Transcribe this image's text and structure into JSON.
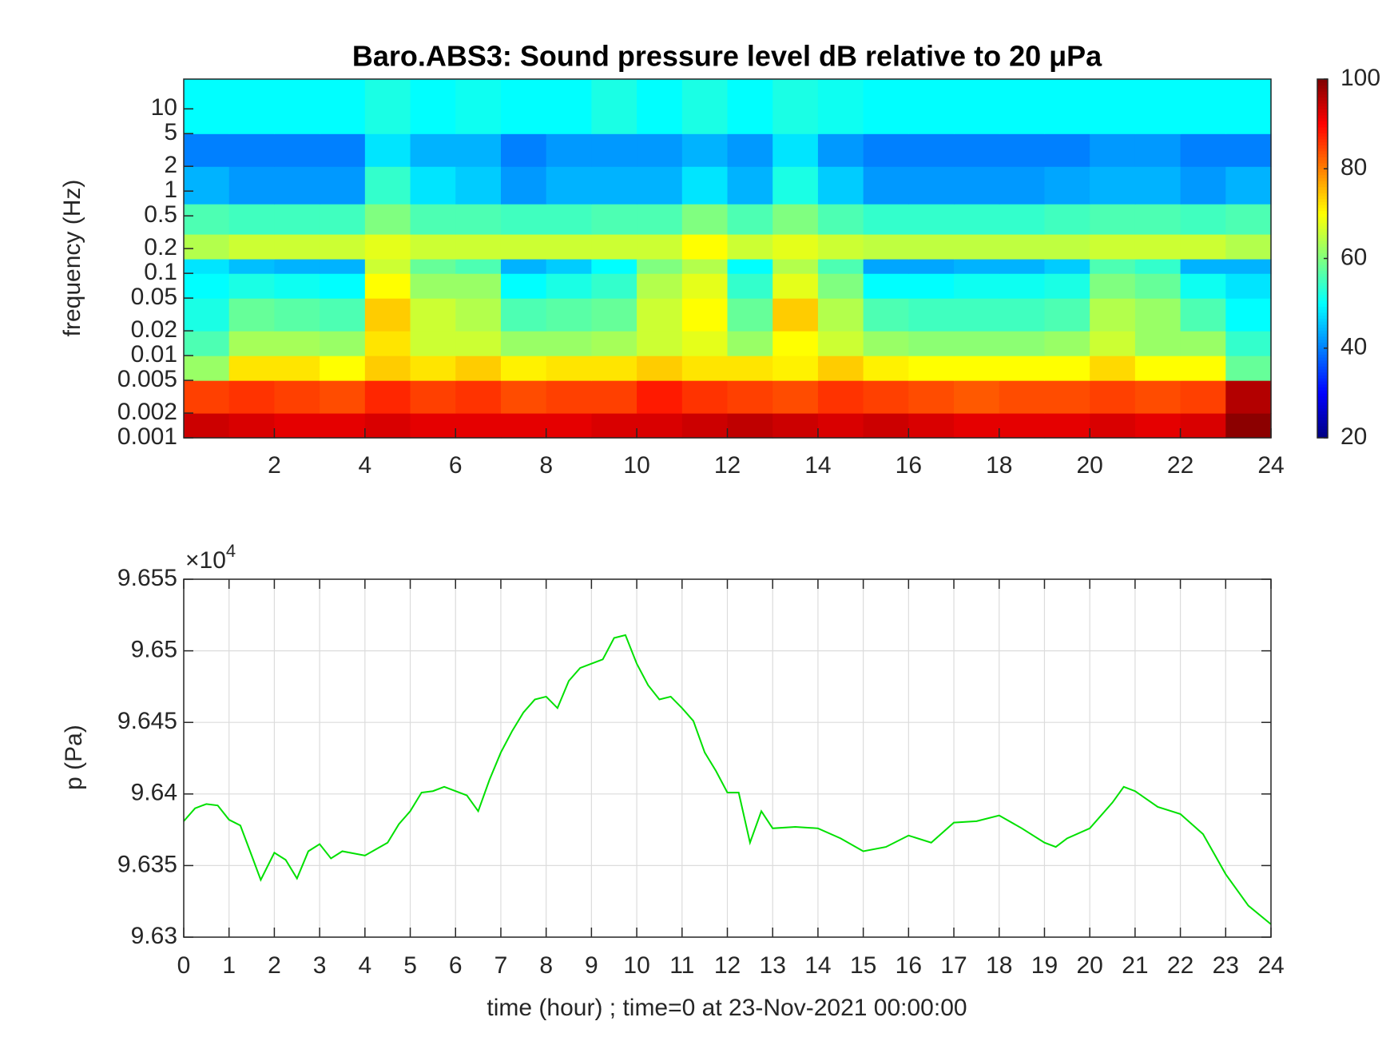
{
  "chart_data": [
    {
      "type": "heatmap",
      "title": "Baro.ABS3: Sound pressure level dB relative to 20 μPa",
      "y_label": "frequency (Hz)",
      "xlim": [
        0,
        24
      ],
      "xticks": [
        2,
        4,
        6,
        8,
        10,
        12,
        14,
        16,
        18,
        20,
        22,
        24
      ],
      "ylim": [
        0.001,
        23
      ],
      "ylog": true,
      "yticks": [
        0.001,
        0.002,
        0.005,
        0.01,
        0.02,
        0.05,
        0.1,
        0.2,
        0.5,
        1,
        2,
        5,
        10
      ],
      "xbins": [
        0,
        1,
        2,
        3,
        4,
        5,
        6,
        7,
        8,
        9,
        10,
        11,
        12,
        13,
        14,
        15,
        16,
        17,
        18,
        19,
        20,
        21,
        22,
        23,
        24
      ],
      "ybins": [
        0.001,
        0.002,
        0.005,
        0.01,
        0.02,
        0.05,
        0.1,
        0.15,
        0.3,
        0.7,
        2,
        5,
        23
      ],
      "z": [
        [
          94,
          93,
          92,
          92,
          93,
          92,
          92,
          92,
          92,
          93,
          93,
          94,
          95,
          94,
          93,
          94,
          93,
          92,
          92,
          92,
          93,
          92,
          93,
          99
        ],
        [
          85,
          86,
          85,
          84,
          87,
          85,
          86,
          84,
          85,
          85,
          88,
          86,
          85,
          84,
          86,
          85,
          84,
          83,
          84,
          84,
          85,
          84,
          85,
          96
        ],
        [
          62,
          72,
          72,
          70,
          74,
          72,
          74,
          71,
          72,
          72,
          74,
          72,
          72,
          71,
          74,
          71,
          70,
          70,
          70,
          70,
          73,
          70,
          70,
          58
        ],
        [
          56,
          63,
          63,
          62,
          72,
          66,
          66,
          62,
          62,
          63,
          66,
          68,
          62,
          70,
          66,
          62,
          61,
          61,
          61,
          62,
          66,
          62,
          62,
          54
        ],
        [
          52,
          58,
          57,
          56,
          74,
          66,
          64,
          56,
          57,
          58,
          66,
          70,
          58,
          74,
          64,
          56,
          55,
          55,
          55,
          56,
          64,
          62,
          56,
          50
        ],
        [
          50,
          52,
          51,
          50,
          70,
          62,
          62,
          50,
          52,
          54,
          64,
          68,
          54,
          68,
          60,
          50,
          50,
          51,
          51,
          52,
          60,
          58,
          51,
          48
        ],
        [
          48,
          45,
          44,
          44,
          66,
          58,
          56,
          44,
          46,
          50,
          60,
          64,
          50,
          64,
          56,
          43,
          43,
          44,
          44,
          46,
          56,
          54,
          44,
          44
        ],
        [
          64,
          66,
          66,
          66,
          68,
          66,
          66,
          66,
          66,
          66,
          66,
          70,
          66,
          68,
          66,
          65,
          65,
          65,
          65,
          65,
          66,
          66,
          66,
          64
        ],
        [
          56,
          55,
          55,
          55,
          60,
          56,
          56,
          55,
          55,
          56,
          56,
          60,
          56,
          60,
          56,
          54,
          54,
          54,
          54,
          55,
          56,
          56,
          55,
          56
        ],
        [
          44,
          42,
          42,
          42,
          54,
          48,
          46,
          42,
          44,
          44,
          44,
          48,
          44,
          52,
          46,
          42,
          42,
          42,
          42,
          43,
          44,
          44,
          42,
          44
        ],
        [
          40,
          40,
          40,
          40,
          48,
          44,
          44,
          40,
          42,
          42,
          42,
          44,
          42,
          48,
          42,
          40,
          40,
          40,
          40,
          40,
          42,
          42,
          40,
          40
        ],
        [
          50,
          50,
          50,
          50,
          52,
          50,
          51,
          50,
          50,
          52,
          50,
          52,
          50,
          52,
          51,
          50,
          50,
          50,
          50,
          50,
          50,
          50,
          50,
          50
        ]
      ],
      "colormap": "jet",
      "clim": [
        20,
        100
      ],
      "cticks": [
        20,
        40,
        60,
        80,
        100
      ]
    },
    {
      "type": "line",
      "y_label": "p (Pa)",
      "x_label": "time (hour) ; time=0 at 23-Nov-2021 00:00:00",
      "y_exponent": "×10",
      "y_exponent_power": "4",
      "color": "#00e000",
      "grid": true,
      "xlim": [
        0,
        24
      ],
      "xticks": [
        0,
        1,
        2,
        3,
        4,
        5,
        6,
        7,
        8,
        9,
        10,
        11,
        12,
        13,
        14,
        15,
        16,
        17,
        18,
        19,
        20,
        21,
        22,
        23,
        24
      ],
      "ylim": [
        96300,
        96550
      ],
      "yticks": [
        {
          "value": 96300,
          "label": "9.63"
        },
        {
          "value": 96350,
          "label": "9.635"
        },
        {
          "value": 96400,
          "label": "9.64"
        },
        {
          "value": 96450,
          "label": "9.645"
        },
        {
          "value": 96500,
          "label": "9.65"
        },
        {
          "value": 96550,
          "label": "9.655"
        }
      ],
      "x": [
        0,
        0.25,
        0.5,
        0.75,
        1,
        1.25,
        1.5,
        1.7,
        2,
        2.25,
        2.5,
        2.75,
        3,
        3.25,
        3.5,
        4,
        4.5,
        4.75,
        5,
        5.25,
        5.5,
        5.75,
        6,
        6.25,
        6.5,
        6.75,
        7,
        7.25,
        7.5,
        7.75,
        8,
        8.25,
        8.5,
        8.75,
        9,
        9.25,
        9.5,
        9.75,
        10,
        10.25,
        10.5,
        10.75,
        11,
        11.25,
        11.5,
        11.75,
        12,
        12.25,
        12.5,
        12.75,
        13,
        13.5,
        14,
        14.5,
        15,
        15.5,
        16,
        16.5,
        17,
        17.5,
        18,
        18.5,
        19,
        19.25,
        19.5,
        20,
        20.5,
        20.75,
        21,
        21.5,
        22,
        22.5,
        23,
        23.5,
        24
      ],
      "values": [
        96381,
        96390,
        96393,
        96392,
        96382,
        96378,
        96357,
        96340,
        96359,
        96354,
        96341,
        96360,
        96365,
        96355,
        96360,
        96357,
        96366,
        96379,
        96388,
        96401,
        96402,
        96405,
        96402,
        96399,
        96388,
        96410,
        96429,
        96444,
        96457,
        96466,
        96468,
        96460,
        96479,
        96488,
        96491,
        96494,
        96509,
        96511,
        96491,
        96476,
        96466,
        96468,
        96460,
        96451,
        96429,
        96416,
        96401,
        96401,
        96366,
        96388,
        96376,
        96377,
        96376,
        96369,
        96360,
        96363,
        96371,
        96366,
        96380,
        96381,
        96385,
        96376,
        96366,
        96363,
        96369,
        96376,
        96394,
        96405,
        96402,
        96391,
        96386,
        96372,
        96344,
        96322,
        96309
      ]
    }
  ]
}
